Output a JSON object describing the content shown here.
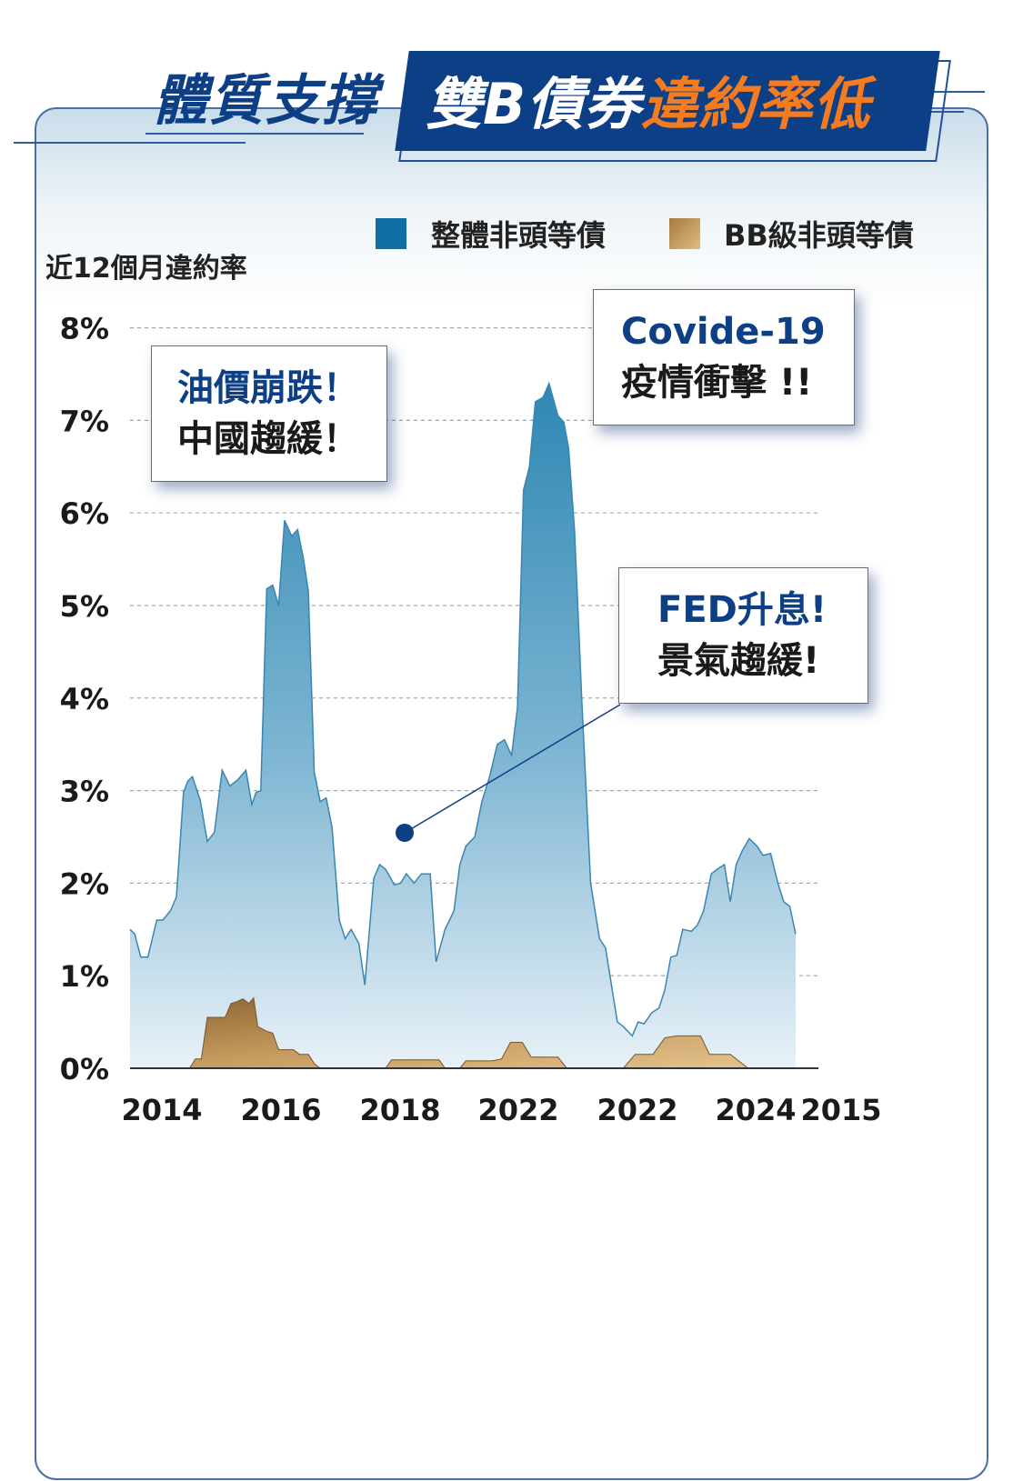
{
  "header": {
    "title_left": "體質支撐",
    "banner_white": "雙B債券",
    "banner_orange": "違約率低"
  },
  "colors": {
    "navy": "#0d3f86",
    "orange": "#f47b20",
    "series_overall": "#3e8fb8",
    "series_bb": "#b8884d"
  },
  "chart_data": {
    "type": "area",
    "ylabel": "近12個月違約率",
    "ylim": [
      0,
      8
    ],
    "yticks": [
      "0%",
      "1%",
      "2%",
      "3%",
      "4%",
      "5%",
      "6%",
      "7%",
      "8%"
    ],
    "xticks": [
      "2014",
      "2016",
      "2018",
      "2022",
      "2022",
      "2024",
      "2015"
    ],
    "grid": true,
    "legend_position": "top",
    "series": [
      {
        "name": "整體非頭等債",
        "x": [
          2014.0,
          2014.08,
          2014.18,
          2014.3,
          2014.45,
          2014.55,
          2014.68,
          2014.78,
          2014.9,
          2014.97,
          2015.05,
          2015.18,
          2015.3,
          2015.42,
          2015.55,
          2015.68,
          2015.82,
          2015.95,
          2016.05,
          2016.12,
          2016.2,
          2016.3,
          2016.4,
          2016.5,
          2016.6,
          2016.72,
          2016.82,
          2016.92,
          2017.0,
          2017.1,
          2017.2,
          2017.3,
          2017.4,
          2017.52,
          2017.62,
          2017.72,
          2017.85,
          2017.95,
          2018.1,
          2018.2,
          2018.3,
          2018.45,
          2018.55,
          2018.65,
          2018.78,
          2018.9,
          2019.05,
          2019.15,
          2019.3,
          2019.45,
          2019.55,
          2019.65,
          2019.8,
          2019.92,
          2020.05,
          2020.18,
          2020.3,
          2020.42,
          2020.52,
          2020.62,
          2020.72,
          2020.82,
          2020.95,
          2021.05,
          2021.2,
          2021.3,
          2021.38,
          2021.48,
          2021.6,
          2021.75,
          2021.9,
          2022.0,
          2022.1,
          2022.2,
          2022.3,
          2022.45,
          2022.55,
          2022.65,
          2022.78,
          2022.9,
          2023.0,
          2023.1,
          2023.2,
          2023.3,
          2023.45,
          2023.55,
          2023.65,
          2023.78,
          2023.88,
          2024.0,
          2024.1,
          2024.2,
          2024.3,
          2024.42,
          2024.55,
          2024.65,
          2024.78,
          2024.9,
          2025.0,
          2025.1,
          2025.2
        ],
        "values": [
          1.5,
          1.45,
          1.2,
          1.2,
          1.6,
          1.6,
          1.7,
          1.85,
          2.98,
          3.1,
          3.15,
          2.9,
          2.45,
          2.55,
          3.22,
          3.05,
          3.12,
          3.22,
          2.85,
          2.98,
          3.0,
          5.18,
          5.22,
          5.0,
          5.92,
          5.75,
          5.82,
          5.5,
          5.15,
          3.2,
          2.88,
          2.92,
          2.6,
          1.6,
          1.4,
          1.5,
          1.35,
          0.9,
          2.05,
          2.2,
          2.15,
          1.98,
          2.0,
          2.1,
          2.0,
          2.1,
          2.1,
          1.15,
          1.5,
          1.7,
          2.2,
          2.4,
          2.5,
          2.88,
          3.15,
          3.5,
          3.55,
          3.38,
          3.9,
          6.25,
          6.5,
          7.2,
          7.25,
          7.4,
          7.05,
          6.98,
          6.7,
          5.8,
          4.0,
          2.0,
          1.4,
          1.3,
          0.9,
          0.5,
          0.45,
          0.35,
          0.5,
          0.48,
          0.6,
          0.65,
          0.85,
          1.2,
          1.22,
          1.5,
          1.48,
          1.55,
          1.7,
          2.1,
          2.15,
          2.2,
          1.8,
          2.2,
          2.35,
          2.48,
          2.4,
          2.3,
          2.32,
          2.0,
          1.8,
          1.75,
          1.45
        ]
      },
      {
        "name": "BB級非頭等債",
        "x": [
          2014.0,
          2015.0,
          2015.1,
          2015.2,
          2015.3,
          2015.5,
          2015.6,
          2015.7,
          2015.8,
          2015.9,
          2016.0,
          2016.08,
          2016.15,
          2016.3,
          2016.4,
          2016.5,
          2016.65,
          2016.75,
          2016.85,
          2017.0,
          2017.1,
          2017.2,
          2017.3,
          2017.45,
          2018.3,
          2018.4,
          2018.5,
          2019.2,
          2019.3,
          2019.55,
          2019.65,
          2020.1,
          2020.25,
          2020.4,
          2020.6,
          2020.75,
          2021.2,
          2021.35,
          2021.5,
          2021.65,
          2021.8,
          2022.1,
          2022.3,
          2022.5,
          2022.7,
          2022.8,
          2023.0,
          2023.2,
          2023.35,
          2023.6,
          2023.75,
          2023.9,
          2024.1,
          2024.4,
          2024.55,
          2025.2
        ],
        "values": [
          0,
          0,
          0.1,
          0.1,
          0.55,
          0.55,
          0.55,
          0.7,
          0.72,
          0.75,
          0.7,
          0.76,
          0.45,
          0.4,
          0.38,
          0.2,
          0.2,
          0.2,
          0.15,
          0.15,
          0.05,
          0,
          0,
          0,
          0,
          0.09,
          0.09,
          0.09,
          0,
          0,
          0.08,
          0.08,
          0.1,
          0.28,
          0.28,
          0.12,
          0.12,
          0,
          0,
          0,
          0,
          0,
          0,
          0.15,
          0.15,
          0.15,
          0.33,
          0.35,
          0.35,
          0.35,
          0.15,
          0.15,
          0.15,
          0,
          0,
          0
        ]
      }
    ],
    "annotations": [
      {
        "line1": "油價崩跌！",
        "line2": "中國趨緩！"
      },
      {
        "line1": "Covide-19",
        "line2": "疫情衝擊 !!"
      },
      {
        "line1": "FED升息!",
        "line2": "景氣趨緩!"
      }
    ]
  }
}
